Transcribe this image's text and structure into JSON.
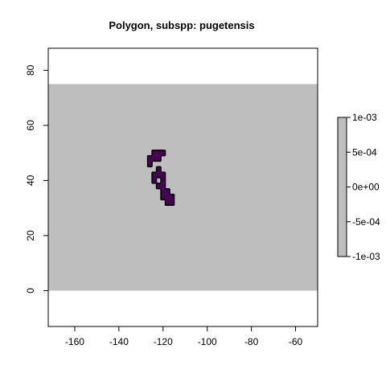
{
  "chart_data": {
    "type": "heatmap",
    "title": "Polygon, subspp: pugetensis",
    "xlabel": "",
    "ylabel": "",
    "xlim": [
      -172,
      -50
    ],
    "ylim": [
      -13,
      88
    ],
    "x_ticks": [
      -160,
      -140,
      -120,
      -100,
      -80,
      -60
    ],
    "y_ticks": [
      0,
      20,
      40,
      60,
      80
    ],
    "raster_extent": {
      "x": [
        -172,
        -50
      ],
      "y": [
        0,
        75
      ]
    },
    "background_value": 0,
    "colors": {
      "background_raster": "#bebebe",
      "polygon_fill": "#440154",
      "polygon_border": "#000000",
      "legend_fill": "#bebebe"
    },
    "polygon_cells_lonlat": [
      [
        -124,
        50
      ],
      [
        -122,
        50
      ],
      [
        -120,
        50
      ],
      [
        -126,
        48
      ],
      [
        -124,
        48
      ],
      [
        -122,
        48
      ],
      [
        -126,
        46
      ],
      [
        -122,
        44
      ],
      [
        -124,
        42
      ],
      [
        -122,
        42
      ],
      [
        -120,
        42
      ],
      [
        -124,
        40
      ],
      [
        -120,
        40
      ],
      [
        -122,
        38
      ],
      [
        -120,
        38
      ],
      [
        -120,
        36
      ],
      [
        -118,
        36
      ],
      [
        -120,
        34
      ],
      [
        -118,
        34
      ],
      [
        -116,
        34
      ],
      [
        -118,
        32
      ],
      [
        -116,
        32
      ]
    ],
    "legend": {
      "placement": "right",
      "labels": [
        "1e-03",
        "5e-04",
        "0e+00",
        "-5e-04",
        "-1e-03"
      ],
      "values": [
        0.001,
        0.0005,
        0,
        -0.0005,
        -0.001
      ]
    }
  }
}
